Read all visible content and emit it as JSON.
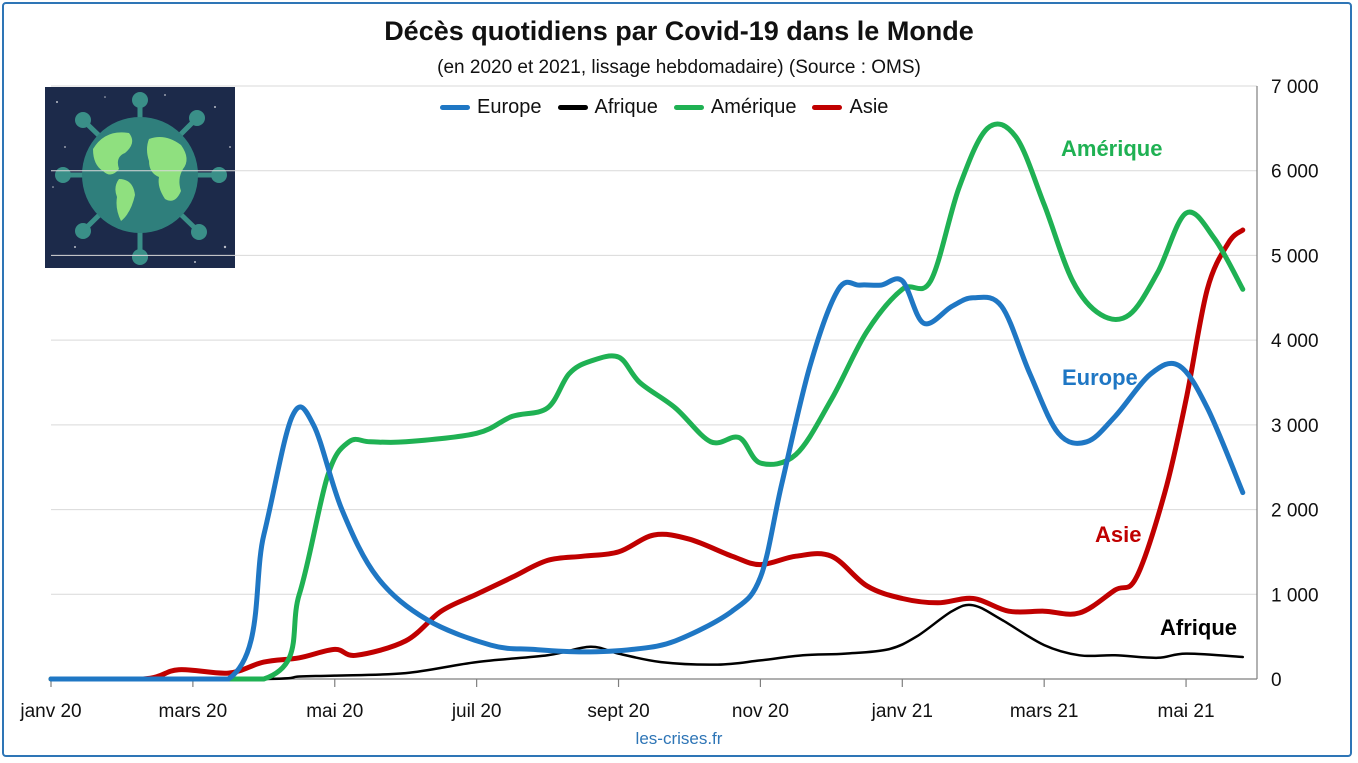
{
  "title": "Décès quotidiens par Covid-19 dans le Monde",
  "subtitle": "(en 2020 et 2021, lissage hebdomadaire) (Source : OMS)",
  "source_credit": "les-crises.fr",
  "illustration_icon": "globe-virus-icon",
  "colors": {
    "europe": "#1f77c4",
    "afrique": "#000000",
    "amerique": "#1fb153",
    "asie": "#c00000",
    "frame": "#2e75b6"
  },
  "chart_data": {
    "type": "line",
    "title": "Décès quotidiens par Covid-19 dans le Monde",
    "subtitle": "(en 2020 et 2021, lissage hebdomadaire) (Source : OMS)",
    "xlabel": "",
    "ylabel": "",
    "ylim": [
      0,
      7000
    ],
    "xlim_months": [
      0,
      17
    ],
    "y_axis_position": "right",
    "grid": true,
    "legend_position": "top",
    "yticks": [
      "0",
      "1 000",
      "2 000",
      "3 000",
      "4 000",
      "5 000",
      "6 000",
      "7 000"
    ],
    "ytick_values": [
      0,
      1000,
      2000,
      3000,
      4000,
      5000,
      6000,
      7000
    ],
    "xticks": [
      "janv 20",
      "mars 20",
      "mai 20",
      "juil 20",
      "sept 20",
      "nov 20",
      "janv 21",
      "mars 21",
      "mai 21"
    ],
    "xtick_months": [
      0,
      2,
      4,
      6,
      8,
      10,
      12,
      14,
      16
    ],
    "series": [
      {
        "name": "Europe",
        "key": "europe",
        "x": [
          0,
          2.5,
          3.0,
          3.4,
          3.7,
          4.1,
          4.6,
          5.3,
          6.2,
          6.8,
          7.5,
          8.2,
          8.8,
          9.6,
          10.0,
          10.3,
          10.7,
          11.1,
          11.4,
          11.7,
          12.0,
          12.3,
          12.7,
          13.0,
          13.4,
          13.8,
          14.2,
          14.6,
          15.0,
          15.5,
          15.9,
          16.3,
          16.8
        ],
        "values": [
          0,
          0,
          1700,
          3100,
          3000,
          2000,
          1200,
          700,
          400,
          350,
          320,
          350,
          450,
          800,
          1200,
          2300,
          3700,
          4600,
          4650,
          4650,
          4700,
          4200,
          4400,
          4500,
          4400,
          3600,
          2900,
          2800,
          3100,
          3600,
          3700,
          3200,
          2200
        ]
      },
      {
        "name": "Afrique",
        "key": "afrique",
        "x": [
          0,
          3.0,
          3.5,
          4.0,
          5.0,
          6.0,
          7.0,
          7.6,
          8.0,
          8.6,
          9.4,
          10.0,
          10.6,
          11.2,
          11.8,
          12.2,
          12.7,
          13.0,
          13.4,
          14.0,
          14.5,
          15.0,
          15.6,
          16.0,
          16.8
        ],
        "values": [
          0,
          0,
          30,
          40,
          70,
          200,
          280,
          380,
          300,
          200,
          170,
          220,
          280,
          300,
          350,
          500,
          800,
          870,
          700,
          400,
          280,
          280,
          250,
          300,
          260
        ]
      },
      {
        "name": "Amérique",
        "key": "amerique",
        "x": [
          0,
          3.0,
          3.5,
          3.9,
          4.2,
          4.5,
          5.0,
          6.0,
          6.5,
          7.0,
          7.3,
          7.6,
          8.0,
          8.3,
          8.8,
          9.3,
          9.7,
          10.0,
          10.5,
          11.0,
          11.5,
          12.0,
          12.4,
          12.8,
          13.2,
          13.6,
          14.0,
          14.4,
          14.8,
          15.2,
          15.6,
          16.0,
          16.4,
          16.8
        ],
        "values": [
          0,
          0,
          1000,
          2400,
          2800,
          2800,
          2800,
          2900,
          3100,
          3200,
          3600,
          3750,
          3800,
          3500,
          3200,
          2800,
          2850,
          2550,
          2650,
          3300,
          4100,
          4600,
          4700,
          5800,
          6500,
          6400,
          5600,
          4700,
          4300,
          4300,
          4800,
          5500,
          5200,
          4600
        ]
      },
      {
        "name": "Asie",
        "key": "asie",
        "x": [
          0,
          1.3,
          1.8,
          2.5,
          3.0,
          3.5,
          4.0,
          4.3,
          5.0,
          5.5,
          6.0,
          6.5,
          7.0,
          7.5,
          8.0,
          8.5,
          9.0,
          9.6,
          10.0,
          10.5,
          11.0,
          11.5,
          12.0,
          12.5,
          13.0,
          13.5,
          14.0,
          14.5,
          15.0,
          15.3,
          15.7,
          16.0,
          16.3,
          16.6,
          16.8
        ],
        "values": [
          0,
          0,
          110,
          70,
          200,
          250,
          350,
          280,
          450,
          800,
          1000,
          1200,
          1400,
          1450,
          1500,
          1700,
          1650,
          1450,
          1350,
          1450,
          1450,
          1100,
          950,
          900,
          950,
          800,
          800,
          780,
          1050,
          1200,
          2200,
          3300,
          4600,
          5150,
          5300
        ]
      }
    ],
    "annotations": [
      {
        "text": "Amérique",
        "series": "amerique"
      },
      {
        "text": "Europe",
        "series": "europe"
      },
      {
        "text": "Asie",
        "series": "asie"
      },
      {
        "text": "Afrique",
        "series": "afrique"
      }
    ]
  }
}
